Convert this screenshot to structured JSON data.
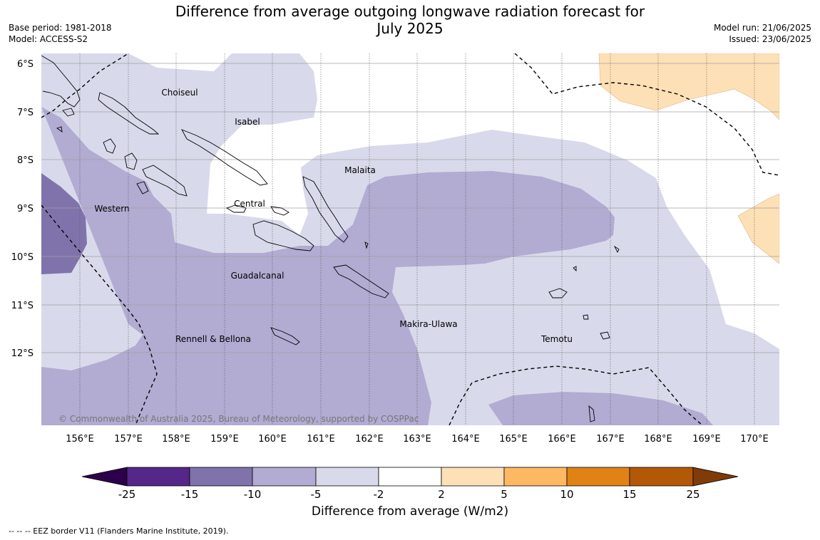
{
  "title_line1": "Difference from average outgoing longwave radiation forecast for",
  "title_line2": "July 2025",
  "base_period": "Base period: 1981-2018",
  "model": "Model: ACCESS-S2",
  "model_run": "Model run: 21/06/2025",
  "issued": "Issued: 23/06/2025",
  "copyright": "© Commonwealth of Australia 2025, Bureau of Meteorology, supported by COSPPac",
  "lat_labels": [
    "6°S",
    "7°S",
    "8°S",
    "9°S",
    "10°S",
    "11°S",
    "12°S"
  ],
  "lon_labels": [
    "156°E",
    "157°E",
    "158°E",
    "159°E",
    "160°E",
    "161°E",
    "162°E",
    "163°E",
    "164°E",
    "165°E",
    "166°E",
    "167°E",
    "168°E",
    "169°E",
    "170°E"
  ],
  "provinces": [
    "Choiseul",
    "Isabel",
    "Malaita",
    "Western",
    "Central",
    "Guadalcanal",
    "Rennell & Bellona",
    "Makira-Ulawa",
    "Temotu"
  ],
  "colorbar": {
    "ticks": [
      "-25",
      "-15",
      "-10",
      "-5",
      "-2",
      "2",
      "5",
      "10",
      "15",
      "25"
    ],
    "colors": [
      "#2d004b",
      "#542788",
      "#8073ac",
      "#b2abd2",
      "#d8daeb",
      "#ffffff",
      "#fee0b6",
      "#fdb863",
      "#e08214",
      "#b35806",
      "#7f3b08"
    ],
    "label": "Difference from average (W/m2)"
  },
  "footnote": "--  --  -- EEZ border V11 (Flanders Marine Institute, 2019)."
}
